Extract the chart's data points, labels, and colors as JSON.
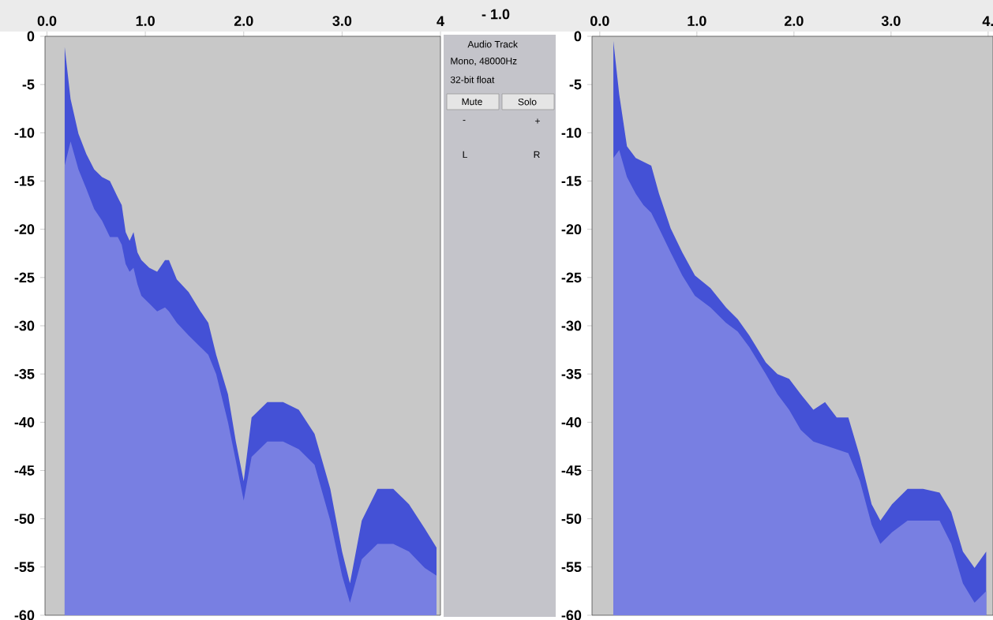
{
  "chart_data": [
    {
      "type": "area",
      "xlim": [
        -0.02,
        4.0
      ],
      "ylim": [
        -60,
        0
      ],
      "xticks": [
        {
          "value": 0,
          "label": "0.0"
        },
        {
          "value": 1,
          "label": "1.0"
        },
        {
          "value": 2,
          "label": "2.0"
        },
        {
          "value": 3,
          "label": "3.0"
        },
        4
      ],
      "yticks": [
        0,
        -5,
        -10,
        -15,
        -20,
        -25,
        -30,
        -35,
        -40,
        -45,
        -50,
        -55,
        -60
      ],
      "series": [
        {
          "color": "#4451d6",
          "x": [
            0.18,
            0.24,
            0.32,
            0.4,
            0.48,
            0.56,
            0.64,
            0.72,
            0.76,
            0.8,
            0.84,
            0.88,
            0.92,
            0.96,
            1.04,
            1.12,
            1.2,
            1.24,
            1.32,
            1.44,
            1.56,
            1.64,
            1.72,
            1.84,
            1.92,
            2.0,
            2.08,
            2.24,
            2.4,
            2.56,
            2.72,
            2.88,
            3.0,
            3.08,
            3.2,
            3.36,
            3.52,
            3.68,
            3.84,
            3.96
          ],
          "values": [
            -1.1,
            -6.5,
            -10.1,
            -12.2,
            -13.8,
            -14.6,
            -15.0,
            -16.7,
            -17.5,
            -20.3,
            -21.2,
            -20.3,
            -22.4,
            -23.2,
            -24.0,
            -24.4,
            -23.2,
            -23.2,
            -25.2,
            -26.5,
            -28.5,
            -29.7,
            -33.0,
            -37.1,
            -42.0,
            -46.1,
            -39.5,
            -37.9,
            -37.9,
            -38.7,
            -41.2,
            -46.9,
            -53.4,
            -56.7,
            -50.2,
            -46.9,
            -46.9,
            -48.5,
            -51.0,
            -53.0
          ]
        },
        {
          "color": "#787fe2",
          "x": [
            0.18,
            0.24,
            0.32,
            0.4,
            0.48,
            0.56,
            0.64,
            0.72,
            0.76,
            0.8,
            0.84,
            0.88,
            0.92,
            0.96,
            1.04,
            1.12,
            1.2,
            1.24,
            1.32,
            1.44,
            1.56,
            1.64,
            1.72,
            1.84,
            1.92,
            2.0,
            2.08,
            2.24,
            2.4,
            2.56,
            2.72,
            2.88,
            3.0,
            3.08,
            3.2,
            3.36,
            3.52,
            3.68,
            3.84,
            3.96
          ],
          "values": [
            -13.4,
            -10.9,
            -13.8,
            -15.8,
            -17.9,
            -19.1,
            -20.8,
            -20.8,
            -21.6,
            -23.6,
            -24.4,
            -24.0,
            -25.7,
            -26.9,
            -27.7,
            -28.5,
            -28.1,
            -28.5,
            -29.7,
            -31.0,
            -32.2,
            -33.0,
            -35.0,
            -40.0,
            -44.0,
            -48.1,
            -43.6,
            -42.0,
            -42.0,
            -42.8,
            -44.4,
            -50.2,
            -55.9,
            -58.7,
            -54.2,
            -52.6,
            -52.6,
            -53.4,
            -55.1,
            -55.9
          ]
        }
      ]
    },
    {
      "type": "other",
      "annotations": [
        "- 1.0",
        "Audio Track",
        "Mono, 48000Hz",
        "32-bit float",
        "Mute",
        "Solo",
        "-",
        "+",
        "L",
        "R"
      ]
    },
    {
      "type": "area",
      "xlim": [
        -0.08,
        4.05
      ],
      "ylim": [
        -60,
        0
      ],
      "xticks": [
        {
          "value": 0,
          "label": "0.0"
        },
        {
          "value": 1,
          "label": "1.0"
        },
        {
          "value": 2,
          "label": "2.0"
        },
        {
          "value": 3,
          "label": "3.0"
        },
        {
          "value": 4,
          "label": "4."
        }
      ],
      "yticks": [
        0,
        -5,
        -10,
        -15,
        -20,
        -25,
        -30,
        -35,
        -40,
        -45,
        -50,
        -55,
        -60
      ],
      "series": [
        {
          "color": "#4451d6",
          "x": [
            0.14,
            0.2,
            0.28,
            0.37,
            0.45,
            0.53,
            0.61,
            0.73,
            0.85,
            0.98,
            1.14,
            1.3,
            1.42,
            1.54,
            1.71,
            1.83,
            1.95,
            2.07,
            2.2,
            2.32,
            2.44,
            2.56,
            2.68,
            2.8,
            2.89,
            3.01,
            3.17,
            3.33,
            3.5,
            3.62,
            3.74,
            3.86,
            3.98
          ],
          "values": [
            -0.5,
            -6.0,
            -11.4,
            -12.6,
            -13.0,
            -13.4,
            -16.3,
            -19.9,
            -22.4,
            -24.8,
            -26.1,
            -28.1,
            -29.3,
            -31.0,
            -33.8,
            -35.0,
            -35.5,
            -37.1,
            -38.7,
            -37.9,
            -39.5,
            -39.5,
            -43.6,
            -48.5,
            -50.2,
            -48.5,
            -46.9,
            -46.9,
            -47.3,
            -49.3,
            -53.4,
            -55.1,
            -53.4
          ]
        },
        {
          "color": "#787fe2",
          "x": [
            0.14,
            0.2,
            0.28,
            0.37,
            0.45,
            0.53,
            0.61,
            0.73,
            0.85,
            0.98,
            1.14,
            1.3,
            1.42,
            1.54,
            1.71,
            1.83,
            1.95,
            2.07,
            2.2,
            2.32,
            2.44,
            2.56,
            2.68,
            2.8,
            2.89,
            3.01,
            3.17,
            3.33,
            3.5,
            3.62,
            3.74,
            3.86,
            3.98
          ],
          "values": [
            -12.6,
            -11.8,
            -14.6,
            -16.3,
            -17.5,
            -18.3,
            -19.9,
            -22.4,
            -24.8,
            -26.9,
            -28.1,
            -29.7,
            -30.6,
            -32.2,
            -35.0,
            -37.1,
            -38.7,
            -40.8,
            -42.0,
            -42.4,
            -42.8,
            -43.2,
            -46.1,
            -50.6,
            -52.6,
            -51.4,
            -50.2,
            -50.2,
            -50.2,
            -52.6,
            -56.7,
            -58.7,
            -57.5
          ]
        }
      ]
    }
  ]
}
